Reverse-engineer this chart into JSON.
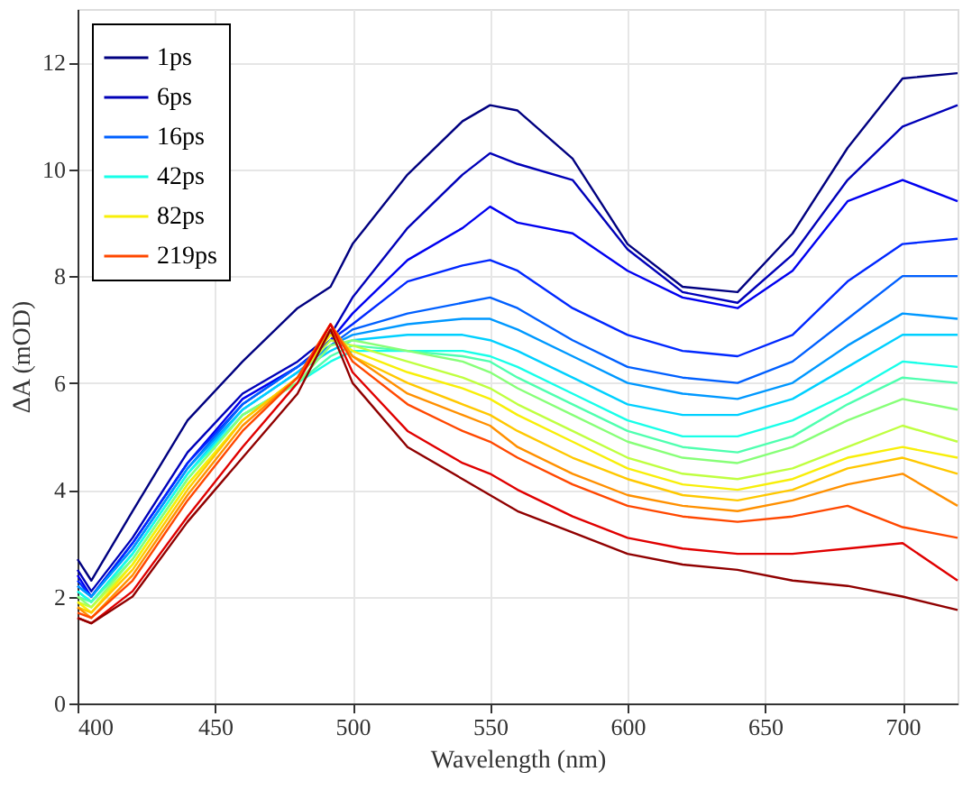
{
  "chart_data": {
    "type": "line",
    "xlabel": "Wavelength (nm)",
    "ylabel": "ΔA (mOD)",
    "x": [
      400,
      405,
      420,
      440,
      460,
      480,
      492,
      500,
      520,
      540,
      550,
      560,
      580,
      600,
      620,
      640,
      660,
      680,
      700,
      720
    ],
    "xlim": [
      400,
      720
    ],
    "xticks": [
      400,
      450,
      500,
      550,
      600,
      650,
      700
    ],
    "ylim": [
      0,
      13
    ],
    "yticks": [
      0,
      2,
      4,
      6,
      8,
      10,
      12
    ],
    "grid": true,
    "legend": "top left",
    "marker": "none",
    "line_style": "solid",
    "series": [
      {
        "name": "1ps",
        "color": "#000080",
        "values": [
          2.7,
          2.3,
          3.6,
          5.3,
          6.4,
          7.4,
          7.8,
          8.6,
          9.9,
          10.9,
          11.2,
          11.1,
          10.2,
          8.6,
          7.8,
          7.7,
          8.8,
          10.4,
          11.7,
          11.8
        ]
      },
      {
        "name": "6ps",
        "color": "#0000b8",
        "values": [
          2.5,
          2.1,
          3.1,
          4.7,
          5.8,
          6.4,
          6.9,
          7.6,
          8.9,
          9.9,
          10.3,
          10.1,
          9.8,
          8.5,
          7.7,
          7.5,
          8.4,
          9.8,
          10.8,
          11.2
        ]
      },
      {
        "color": "#0000f0",
        "values": [
          2.4,
          2.0,
          3.0,
          4.5,
          5.7,
          6.3,
          6.8,
          7.3,
          8.3,
          8.9,
          9.3,
          9.0,
          8.8,
          8.1,
          7.6,
          7.4,
          8.1,
          9.4,
          9.8,
          9.4
        ]
      },
      {
        "color": "#0028ff",
        "values": [
          2.3,
          2.0,
          3.0,
          4.5,
          5.6,
          6.3,
          6.8,
          7.1,
          7.9,
          8.2,
          8.3,
          8.1,
          7.4,
          6.9,
          6.6,
          6.5,
          6.9,
          7.9,
          8.6,
          8.7
        ]
      },
      {
        "name": "16ps",
        "color": "#0060ff",
        "values": [
          2.2,
          2.0,
          2.9,
          4.4,
          5.6,
          6.3,
          6.7,
          7.0,
          7.3,
          7.5,
          7.6,
          7.4,
          6.8,
          6.3,
          6.1,
          6.0,
          6.4,
          7.2,
          8.0,
          8.0
        ]
      },
      {
        "color": "#0098ff",
        "values": [
          2.2,
          2.0,
          2.9,
          4.4,
          5.5,
          6.2,
          6.7,
          6.9,
          7.1,
          7.2,
          7.2,
          7.0,
          6.5,
          6.0,
          5.8,
          5.7,
          6.0,
          6.7,
          7.3,
          7.2
        ]
      },
      {
        "color": "#00d0ff",
        "values": [
          2.1,
          1.9,
          2.8,
          4.3,
          5.5,
          6.2,
          6.6,
          6.8,
          6.9,
          6.9,
          6.8,
          6.6,
          6.1,
          5.6,
          5.4,
          5.4,
          5.7,
          6.3,
          6.9,
          6.9
        ]
      },
      {
        "name": "42ps",
        "color": "#17ffe8",
        "values": [
          2.1,
          1.9,
          2.8,
          4.3,
          5.4,
          6.0,
          6.4,
          6.6,
          6.6,
          6.6,
          6.5,
          6.3,
          5.8,
          5.3,
          5.0,
          5.0,
          5.3,
          5.8,
          6.4,
          6.3
        ]
      },
      {
        "color": "#4fffaf",
        "values": [
          2.0,
          1.9,
          2.7,
          4.2,
          5.4,
          6.0,
          6.5,
          6.7,
          6.6,
          6.5,
          6.4,
          6.1,
          5.6,
          5.1,
          4.8,
          4.7,
          5.0,
          5.6,
          6.1,
          6.0
        ]
      },
      {
        "color": "#87ff78",
        "values": [
          2.0,
          1.8,
          2.7,
          4.2,
          5.4,
          6.0,
          6.7,
          6.8,
          6.6,
          6.4,
          6.2,
          5.9,
          5.4,
          4.9,
          4.6,
          4.5,
          4.8,
          5.3,
          5.7,
          5.5
        ]
      },
      {
        "color": "#bfff40",
        "values": [
          1.9,
          1.8,
          2.6,
          4.1,
          5.3,
          6.1,
          6.8,
          6.7,
          6.4,
          6.1,
          5.9,
          5.6,
          5.1,
          4.6,
          4.3,
          4.2,
          4.4,
          4.8,
          5.2,
          4.9
        ]
      },
      {
        "name": "82ps",
        "color": "#f8ef08",
        "values": [
          1.9,
          1.7,
          2.6,
          4.1,
          5.3,
          6.1,
          6.9,
          6.6,
          6.2,
          5.9,
          5.7,
          5.4,
          4.9,
          4.4,
          4.1,
          4.0,
          4.2,
          4.6,
          4.8,
          4.6
        ]
      },
      {
        "color": "#ffc800",
        "values": [
          1.8,
          1.7,
          2.5,
          4.0,
          5.3,
          6.1,
          7.0,
          6.5,
          6.0,
          5.6,
          5.4,
          5.1,
          4.6,
          4.2,
          3.9,
          3.8,
          4.0,
          4.4,
          4.6,
          4.3
        ]
      },
      {
        "color": "#ff9000",
        "values": [
          1.8,
          1.6,
          2.4,
          3.9,
          5.2,
          6.1,
          7.1,
          6.5,
          5.8,
          5.4,
          5.2,
          4.8,
          4.3,
          3.9,
          3.7,
          3.6,
          3.8,
          4.1,
          4.3,
          3.7
        ]
      },
      {
        "name": "219ps",
        "color": "#ff4800",
        "values": [
          1.7,
          1.6,
          2.3,
          3.8,
          5.1,
          6.1,
          7.1,
          6.4,
          5.6,
          5.1,
          4.9,
          4.6,
          4.1,
          3.7,
          3.5,
          3.4,
          3.5,
          3.7,
          3.3,
          3.1
        ]
      },
      {
        "color": "#e00000",
        "values": [
          1.6,
          1.5,
          2.1,
          3.5,
          4.8,
          6.0,
          7.1,
          6.2,
          5.1,
          4.5,
          4.3,
          4.0,
          3.5,
          3.1,
          2.9,
          2.8,
          2.8,
          2.9,
          3.0,
          2.3
        ]
      },
      {
        "color": "#900000",
        "values": [
          1.6,
          1.5,
          2.0,
          3.4,
          4.6,
          5.8,
          7.0,
          6.0,
          4.8,
          4.2,
          3.9,
          3.6,
          3.2,
          2.8,
          2.6,
          2.5,
          2.3,
          2.2,
          2.0,
          1.75
        ]
      }
    ]
  }
}
